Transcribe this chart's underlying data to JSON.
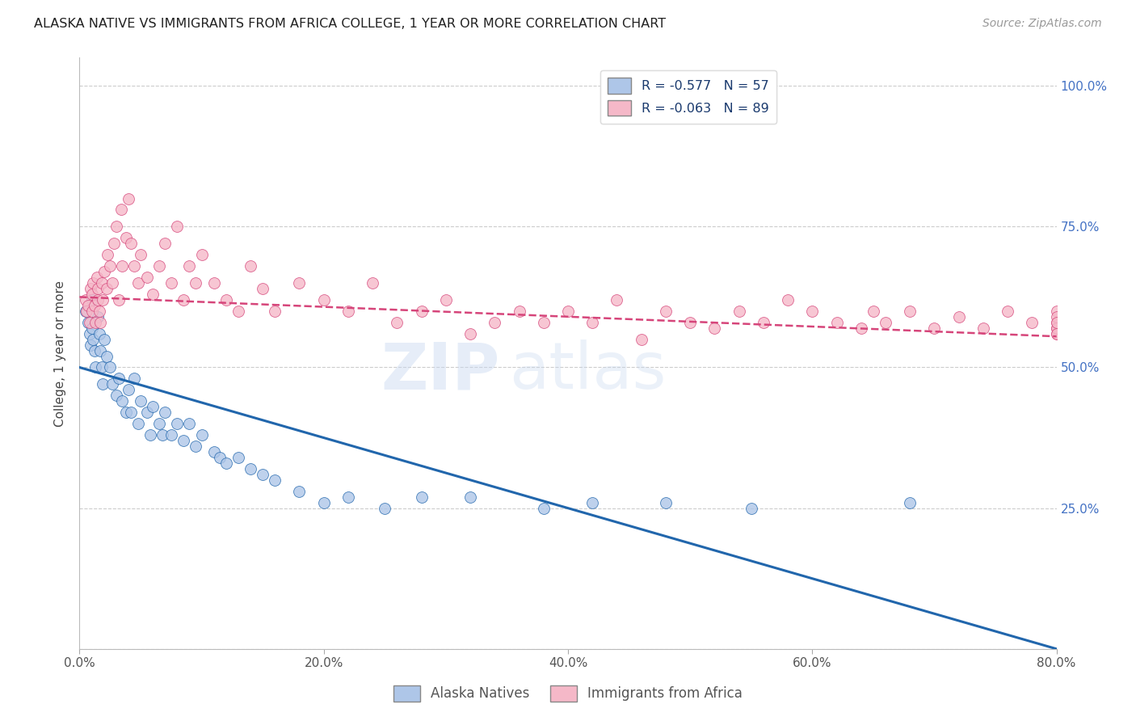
{
  "title": "ALASKA NATIVE VS IMMIGRANTS FROM AFRICA COLLEGE, 1 YEAR OR MORE CORRELATION CHART",
  "source": "Source: ZipAtlas.com",
  "ylabel": "College, 1 year or more",
  "legend_label1": "Alaska Natives",
  "legend_label2": "Immigrants from Africa",
  "R1": -0.577,
  "N1": 57,
  "R2": -0.063,
  "N2": 89,
  "color1": "#aec6e8",
  "color2": "#f5b8c8",
  "line1_color": "#2166ac",
  "line2_color": "#d6457a",
  "watermark": "ZIPatlas",
  "xmin": 0.0,
  "xmax": 0.8,
  "ymin": 0.0,
  "ymax": 1.05,
  "xticks": [
    0.0,
    0.2,
    0.4,
    0.6,
    0.8
  ],
  "xtick_labels": [
    "0.0%",
    "20.0%",
    "40.0%",
    "60.0%",
    "80.0%"
  ],
  "yticks": [
    0.0,
    0.25,
    0.5,
    0.75,
    1.0
  ],
  "ytick_labels_right": [
    "",
    "25.0%",
    "50.0%",
    "75.0%",
    "100.0%"
  ],
  "alaska_line_x0": 0.0,
  "alaska_line_y0": 0.5,
  "alaska_line_x1": 0.8,
  "alaska_line_y1": 0.0,
  "africa_line_x0": 0.0,
  "africa_line_y0": 0.625,
  "africa_line_x1": 0.8,
  "africa_line_y1": 0.555,
  "alaska_x": [
    0.005,
    0.007,
    0.008,
    0.009,
    0.01,
    0.01,
    0.011,
    0.012,
    0.013,
    0.015,
    0.016,
    0.017,
    0.018,
    0.019,
    0.02,
    0.022,
    0.025,
    0.027,
    0.03,
    0.032,
    0.035,
    0.038,
    0.04,
    0.042,
    0.045,
    0.048,
    0.05,
    0.055,
    0.058,
    0.06,
    0.065,
    0.068,
    0.07,
    0.075,
    0.08,
    0.085,
    0.09,
    0.095,
    0.1,
    0.11,
    0.115,
    0.12,
    0.13,
    0.14,
    0.15,
    0.16,
    0.18,
    0.2,
    0.22,
    0.25,
    0.28,
    0.32,
    0.38,
    0.42,
    0.48,
    0.55,
    0.68
  ],
  "alaska_y": [
    0.6,
    0.58,
    0.56,
    0.54,
    0.62,
    0.57,
    0.55,
    0.53,
    0.5,
    0.59,
    0.56,
    0.53,
    0.5,
    0.47,
    0.55,
    0.52,
    0.5,
    0.47,
    0.45,
    0.48,
    0.44,
    0.42,
    0.46,
    0.42,
    0.48,
    0.4,
    0.44,
    0.42,
    0.38,
    0.43,
    0.4,
    0.38,
    0.42,
    0.38,
    0.4,
    0.37,
    0.4,
    0.36,
    0.38,
    0.35,
    0.34,
    0.33,
    0.34,
    0.32,
    0.31,
    0.3,
    0.28,
    0.26,
    0.27,
    0.25,
    0.27,
    0.27,
    0.25,
    0.26,
    0.26,
    0.25,
    0.26
  ],
  "africa_x": [
    0.005,
    0.006,
    0.007,
    0.008,
    0.009,
    0.01,
    0.01,
    0.011,
    0.012,
    0.013,
    0.014,
    0.015,
    0.015,
    0.016,
    0.017,
    0.018,
    0.019,
    0.02,
    0.022,
    0.023,
    0.025,
    0.027,
    0.028,
    0.03,
    0.032,
    0.034,
    0.035,
    0.038,
    0.04,
    0.042,
    0.045,
    0.048,
    0.05,
    0.055,
    0.06,
    0.065,
    0.07,
    0.075,
    0.08,
    0.085,
    0.09,
    0.095,
    0.1,
    0.11,
    0.12,
    0.13,
    0.14,
    0.15,
    0.16,
    0.18,
    0.2,
    0.22,
    0.24,
    0.26,
    0.28,
    0.3,
    0.32,
    0.34,
    0.36,
    0.38,
    0.4,
    0.42,
    0.44,
    0.46,
    0.48,
    0.5,
    0.52,
    0.54,
    0.56,
    0.58,
    0.6,
    0.62,
    0.64,
    0.65,
    0.66,
    0.68,
    0.7,
    0.72,
    0.74,
    0.76,
    0.78,
    0.8,
    0.8,
    0.8,
    0.8,
    0.8,
    0.8,
    0.8,
    0.8
  ],
  "africa_y": [
    0.62,
    0.6,
    0.61,
    0.58,
    0.64,
    0.63,
    0.6,
    0.65,
    0.61,
    0.58,
    0.66,
    0.64,
    0.62,
    0.6,
    0.58,
    0.65,
    0.62,
    0.67,
    0.64,
    0.7,
    0.68,
    0.65,
    0.72,
    0.75,
    0.62,
    0.78,
    0.68,
    0.73,
    0.8,
    0.72,
    0.68,
    0.65,
    0.7,
    0.66,
    0.63,
    0.68,
    0.72,
    0.65,
    0.75,
    0.62,
    0.68,
    0.65,
    0.7,
    0.65,
    0.62,
    0.6,
    0.68,
    0.64,
    0.6,
    0.65,
    0.62,
    0.6,
    0.65,
    0.58,
    0.6,
    0.62,
    0.56,
    0.58,
    0.6,
    0.58,
    0.6,
    0.58,
    0.62,
    0.55,
    0.6,
    0.58,
    0.57,
    0.6,
    0.58,
    0.62,
    0.6,
    0.58,
    0.57,
    0.6,
    0.58,
    0.6,
    0.57,
    0.59,
    0.57,
    0.6,
    0.58,
    0.6,
    0.57,
    0.58,
    0.56,
    0.59,
    0.57,
    0.58,
    0.56
  ]
}
